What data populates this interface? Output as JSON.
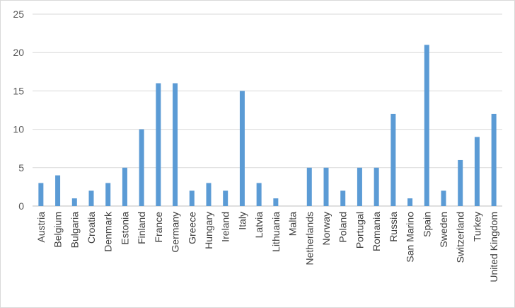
{
  "chart_data": {
    "type": "bar",
    "categories": [
      "Austria",
      "Belgium",
      "Bulgaria",
      "Croatia",
      "Denmark",
      "Estonia",
      "Finland",
      "France",
      "Germany",
      "Greece",
      "Hungary",
      "Ireland",
      "Italy",
      "Latvia",
      "Lithuania",
      "Malta",
      "Netherlands",
      "Norway",
      "Poland",
      "Portugal",
      "Romania",
      "Russia",
      "San Marino",
      "Spain",
      "Sweden",
      "Switzerland",
      "Turkey",
      "United Kingdom"
    ],
    "values": [
      3,
      4,
      1,
      2,
      3,
      5,
      10,
      16,
      16,
      2,
      3,
      2,
      15,
      3,
      1,
      0,
      5,
      5,
      2,
      5,
      5,
      12,
      1,
      21,
      2,
      6,
      9,
      12
    ],
    "yticks": [
      0,
      5,
      10,
      15,
      20,
      25
    ],
    "ylim": [
      0,
      25
    ],
    "title": "",
    "xlabel": "",
    "ylabel": "",
    "grid": true,
    "bar_color": "#5b9bd5",
    "grid_color": "#d9d9d9"
  }
}
